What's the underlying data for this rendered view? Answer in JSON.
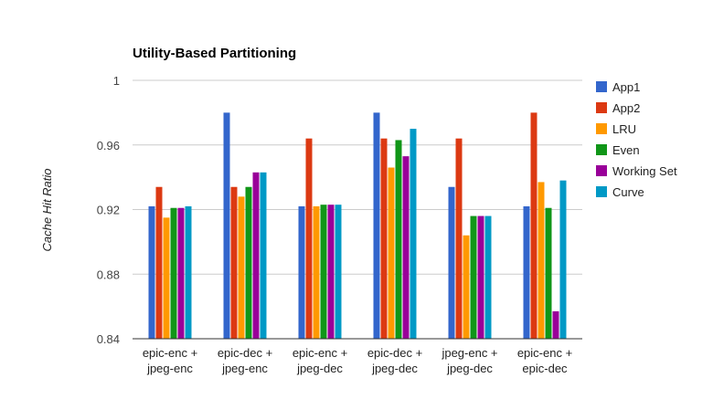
{
  "chart_data": {
    "type": "bar",
    "title": "Utility-Based Partitioning",
    "xlabel": "",
    "ylabel": "Cache Hit Ratio",
    "ylim": [
      0.84,
      1.0
    ],
    "yticks": [
      "1",
      "0.96",
      "0.92",
      "0.88",
      "0.84"
    ],
    "ytick_values": [
      1.0,
      0.96,
      0.92,
      0.88,
      0.84
    ],
    "grid": true,
    "legend_position": "right",
    "categories": [
      [
        "epic-enc +",
        "jpeg-enc"
      ],
      [
        "epic-dec +",
        "jpeg-enc"
      ],
      [
        "epic-enc +",
        "jpeg-dec"
      ],
      [
        "epic-dec +",
        "jpeg-dec"
      ],
      [
        "jpeg-enc +",
        "jpeg-dec"
      ],
      [
        "epic-enc +",
        "epic-dec"
      ]
    ],
    "series": [
      {
        "name": "App1",
        "color": "#3366cc",
        "values": [
          0.922,
          0.98,
          0.922,
          0.98,
          0.934,
          0.922
        ]
      },
      {
        "name": "App2",
        "color": "#dc3912",
        "values": [
          0.934,
          0.934,
          0.964,
          0.964,
          0.964,
          0.98
        ]
      },
      {
        "name": "LRU",
        "color": "#ff9900",
        "values": [
          0.915,
          0.928,
          0.922,
          0.946,
          0.904,
          0.937
        ]
      },
      {
        "name": "Even",
        "color": "#109618",
        "values": [
          0.921,
          0.934,
          0.923,
          0.963,
          0.916,
          0.921
        ]
      },
      {
        "name": "Working Set",
        "color": "#990099",
        "values": [
          0.921,
          0.943,
          0.923,
          0.953,
          0.916,
          0.857
        ]
      },
      {
        "name": "Curve",
        "color": "#0099c6",
        "values": [
          0.922,
          0.943,
          0.923,
          0.97,
          0.916,
          0.938
        ]
      }
    ]
  }
}
